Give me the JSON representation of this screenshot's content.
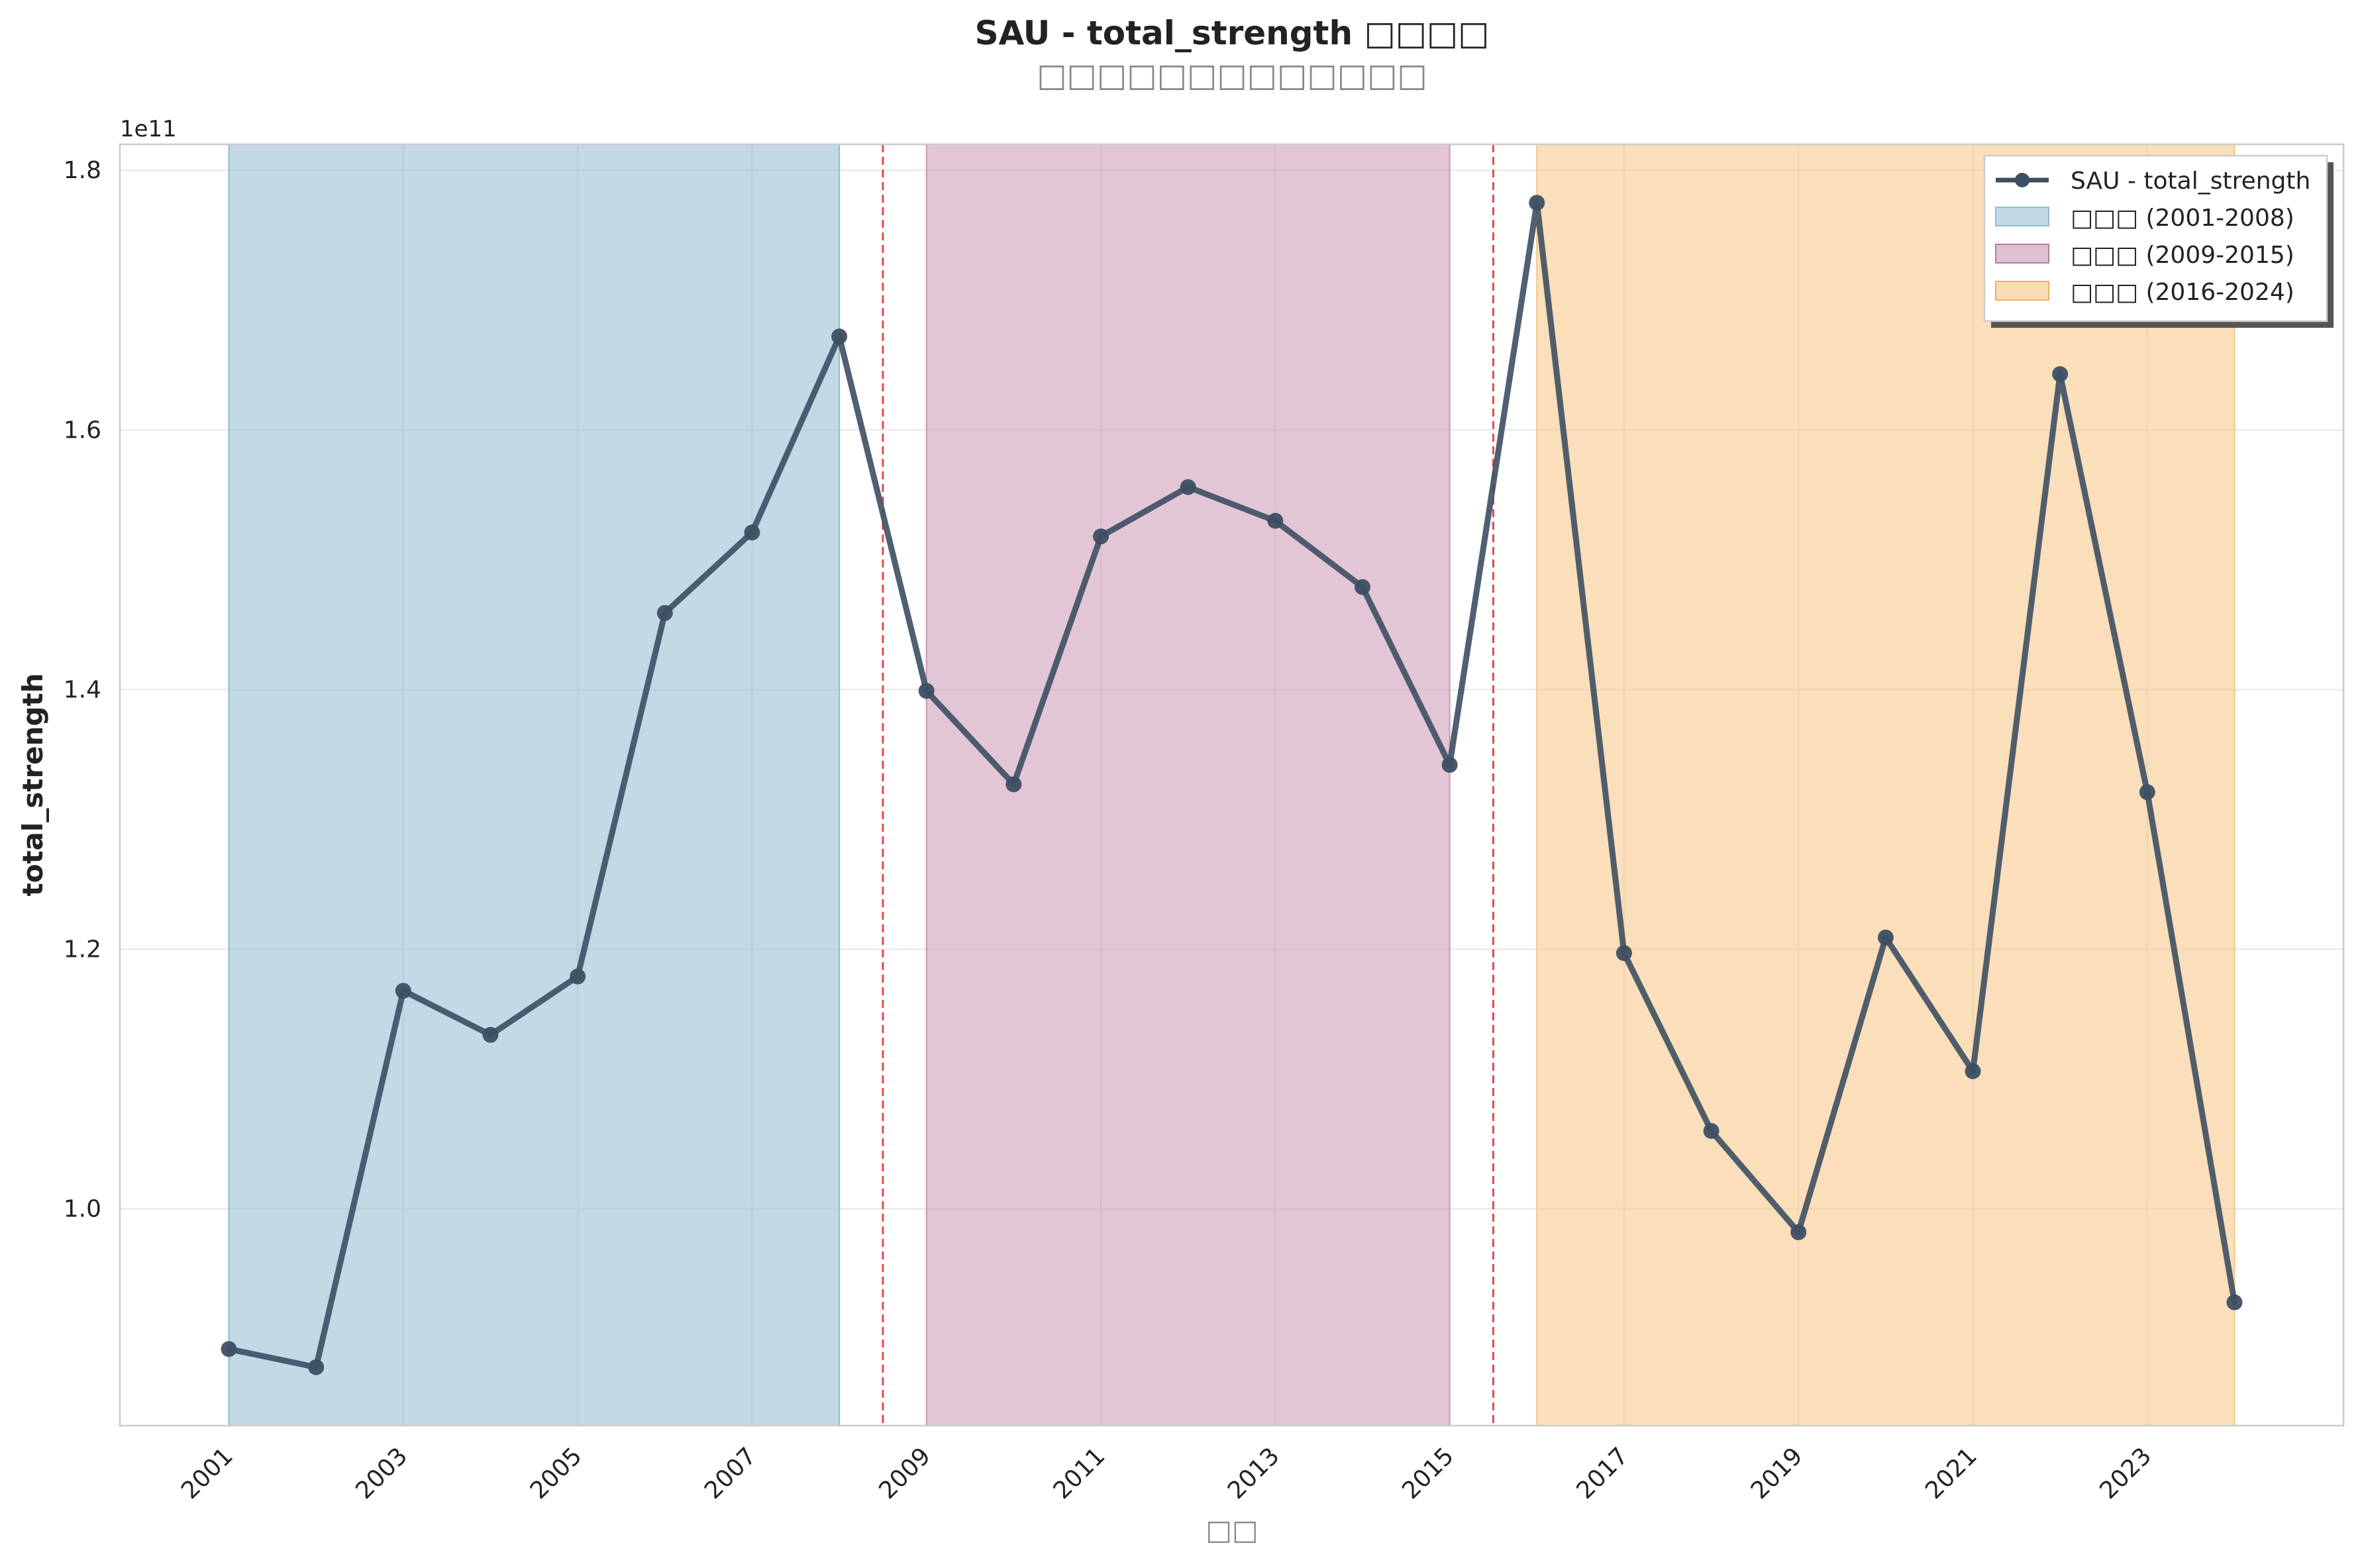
{
  "chart_data": {
    "type": "line",
    "title": "SAU - total_strength □□□□",
    "subtitle": "□□□□□□□□□□□□□",
    "xlabel": "□□",
    "ylabel": "total_strength",
    "y_offset_label": "1e11",
    "y_scale": 100000000000.0,
    "xlim": [
      1999.75,
      2025.25
    ],
    "ylim": [
      0.833,
      1.82
    ],
    "x_ticks": [
      2001,
      2003,
      2005,
      2007,
      2009,
      2011,
      2013,
      2015,
      2017,
      2019,
      2021,
      2023
    ],
    "x_tick_labels": [
      "2001",
      "2003",
      "2005",
      "2007",
      "2009",
      "2011",
      "2013",
      "2015",
      "2017",
      "2019",
      "2021",
      "2023"
    ],
    "y_ticks": [
      1.0,
      1.2,
      1.4,
      1.6,
      1.8
    ],
    "y_tick_labels": [
      "1.0",
      "1.2",
      "1.4",
      "1.6",
      "1.8"
    ],
    "grid": true,
    "legend_position": "top-right",
    "series": [
      {
        "name": "SAU - total_strength",
        "color": "#3d4f63",
        "x": [
          2001,
          2002,
          2003,
          2004,
          2005,
          2006,
          2007,
          2008,
          2009,
          2010,
          2011,
          2012,
          2013,
          2014,
          2015,
          2016,
          2017,
          2018,
          2019,
          2020,
          2021,
          2022,
          2023,
          2024
        ],
        "values": [
          0.892,
          0.878,
          1.168,
          1.134,
          1.179,
          1.459,
          1.521,
          1.672,
          1.399,
          1.327,
          1.518,
          1.556,
          1.53,
          1.479,
          1.342,
          1.775,
          1.197,
          1.06,
          0.982,
          1.209,
          1.106,
          1.643,
          1.321,
          0.928
        ]
      }
    ],
    "periods": [
      {
        "label": "□□□ (2001-2008)",
        "start": 2001,
        "end": 2008,
        "color": "#8fbccf"
      },
      {
        "label": "□□□ (2009-2015)",
        "start": 2009,
        "end": 2015,
        "color": "#cc97b2"
      },
      {
        "label": "□□□ (2016-2024)",
        "start": 2016,
        "end": 2024,
        "color": "#f5c581"
      }
    ],
    "boundaries": [
      2008.5,
      2015.5
    ],
    "boundary_color": "#e8474b"
  }
}
